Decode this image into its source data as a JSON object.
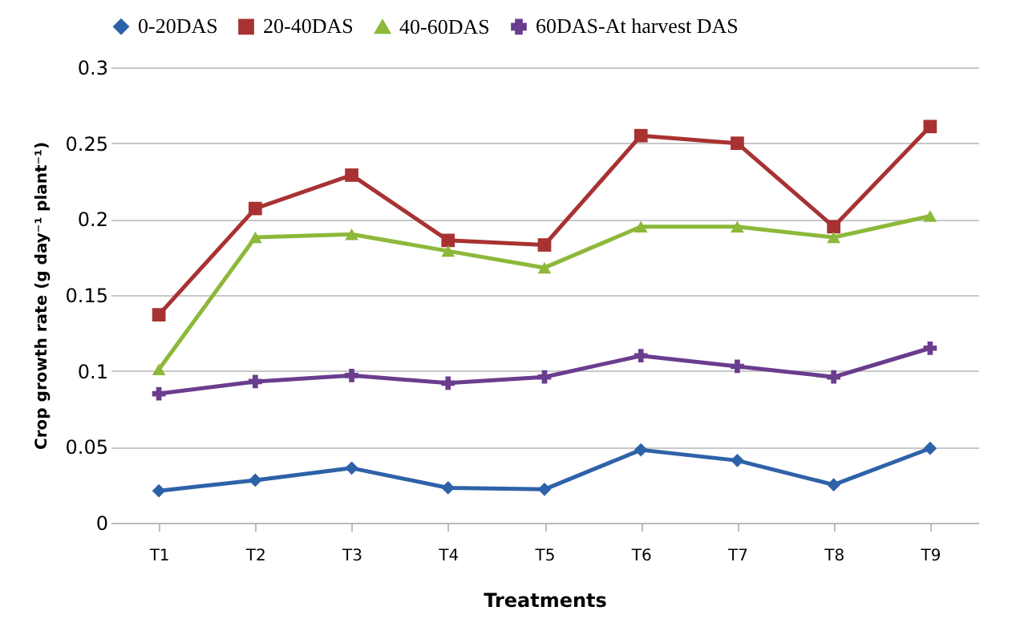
{
  "chart_data": {
    "type": "line",
    "xlabel": "Treatments",
    "ylabel": "Crop growth rate (g day⁻¹ plant⁻¹)",
    "categories": [
      "T1",
      "T2",
      "T3",
      "T4",
      "T5",
      "T6",
      "T7",
      "T8",
      "T9"
    ],
    "series": [
      {
        "name": "0-20DAS",
        "color": "#2e62a8",
        "marker": "diamond",
        "values": [
          0.021,
          0.028,
          0.036,
          0.023,
          0.022,
          0.048,
          0.041,
          0.025,
          0.049
        ]
      },
      {
        "name": "20-40DAS",
        "color": "#a83232",
        "marker": "square",
        "values": [
          0.137,
          0.207,
          0.229,
          0.186,
          0.183,
          0.255,
          0.25,
          0.195,
          0.261
        ]
      },
      {
        "name": "40-60DAS",
        "color": "#8db83a",
        "marker": "triangle",
        "values": [
          0.101,
          0.188,
          0.19,
          0.179,
          0.168,
          0.195,
          0.195,
          0.188,
          0.202
        ]
      },
      {
        "name": "60DAS-At harvest DAS",
        "color": "#6a3d8e",
        "marker": "cross",
        "values": [
          0.085,
          0.093,
          0.097,
          0.092,
          0.096,
          0.11,
          0.103,
          0.096,
          0.115
        ]
      }
    ],
    "ylim": [
      0,
      0.3
    ],
    "yticks": [
      0,
      0.05,
      0.1,
      0.15,
      0.2,
      0.25,
      0.3
    ],
    "grid": "y",
    "legend": "top",
    "line_style": "solid"
  }
}
